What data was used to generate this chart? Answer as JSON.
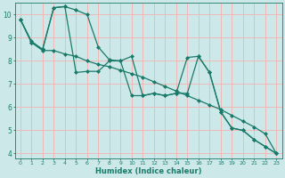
{
  "xlabel": "Humidex (Indice chaleur)",
  "bg_color": "#cce8e8",
  "grid_color": "#f0b8b8",
  "line_color": "#1a7a6a",
  "xlim": [
    -0.5,
    23.5
  ],
  "ylim": [
    3.8,
    10.5
  ],
  "yticks": [
    4,
    5,
    6,
    7,
    8,
    9,
    10
  ],
  "xticks": [
    0,
    1,
    2,
    3,
    4,
    5,
    6,
    7,
    8,
    9,
    10,
    11,
    12,
    13,
    14,
    15,
    16,
    17,
    18,
    19,
    20,
    21,
    22,
    23
  ],
  "line1": [
    9.8,
    8.8,
    8.5,
    10.3,
    10.35,
    10.2,
    10.0,
    8.6,
    8.05,
    8.0,
    8.2,
    6.5,
    6.6,
    6.5,
    6.6,
    8.15,
    8.2,
    7.5,
    5.8,
    5.1,
    5.0,
    4.6,
    4.3,
    4.0
  ],
  "line2": [
    9.8,
    8.85,
    8.5,
    10.3,
    10.35,
    7.5,
    7.55,
    7.55,
    8.0,
    8.0,
    6.5,
    6.5,
    6.6,
    6.5,
    6.6,
    6.6,
    8.2,
    7.5,
    5.8,
    5.1,
    5.0,
    4.6,
    4.3,
    4.0
  ],
  "line3": [
    9.8,
    8.8,
    8.45,
    8.45,
    8.3,
    8.2,
    8.0,
    7.85,
    7.75,
    7.6,
    7.45,
    7.3,
    7.1,
    6.9,
    6.7,
    6.5,
    6.3,
    6.1,
    5.9,
    5.65,
    5.4,
    5.15,
    4.85,
    4.0
  ]
}
